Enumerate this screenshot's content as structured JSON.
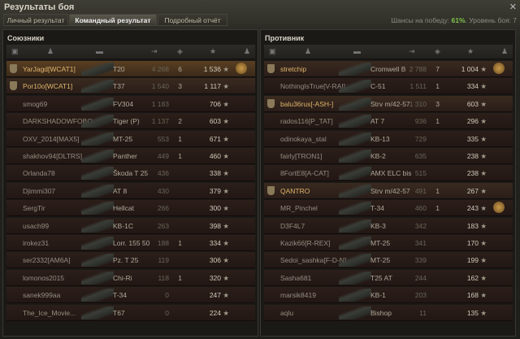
{
  "window": {
    "title": "Результаты боя",
    "close_icon": "close-icon"
  },
  "tabs": [
    {
      "label": "Личный результат"
    },
    {
      "label": "Командный результат",
      "active": true
    },
    {
      "label": "Подробный отчёт"
    }
  ],
  "chance": {
    "label": "Шансы на победу:",
    "value": "61%",
    "level_label": ". Уровень боя: 7"
  },
  "columns": [
    "platoon-icon",
    "player-icon",
    "tank-icon",
    "damage-sort-icon",
    "kills-icon",
    "xp-star-icon",
    "medal-icon"
  ],
  "allies": {
    "title": "Союзники",
    "rows": [
      {
        "name": "YarJagd[WCAT1]",
        "tank": "T20",
        "damage": "4 268",
        "kills": "6",
        "xp": "1 536",
        "platoon": true,
        "me": true,
        "medal": true
      },
      {
        "name": "Por10o[WCAT1]",
        "tank": "T37",
        "damage": "1 540",
        "kills": "3",
        "xp": "1 117",
        "platoon": true
      },
      {
        "name": "smog69",
        "tank": "FV304",
        "damage": "1 183",
        "kills": "",
        "xp": "706"
      },
      {
        "name": "DARKSHADOWFOBO...",
        "tank": "Tiger (P)",
        "damage": "1 137",
        "kills": "2",
        "xp": "603"
      },
      {
        "name": "OXV_2014[MAX5]",
        "tank": "MT-25",
        "damage": "553",
        "kills": "1",
        "xp": "671"
      },
      {
        "name": "shakhov94[DLTRS]",
        "tank": "Panther",
        "damage": "449",
        "kills": "1",
        "xp": "460"
      },
      {
        "name": "Orlanda78",
        "tank": "Škoda T 25",
        "damage": "436",
        "kills": "",
        "xp": "338"
      },
      {
        "name": "Djimmi307",
        "tank": "AT 8",
        "damage": "430",
        "kills": "",
        "xp": "379"
      },
      {
        "name": "SergTir",
        "tank": "Hellcat",
        "damage": "266",
        "kills": "",
        "xp": "300"
      },
      {
        "name": "usach99",
        "tank": "KB-1C",
        "damage": "263",
        "kills": "",
        "xp": "398"
      },
      {
        "name": "irokez31",
        "tank": "Lorr. 155 50",
        "damage": "188",
        "kills": "1",
        "xp": "334"
      },
      {
        "name": "ser2332[AM6A]",
        "tank": "Pz. T 25",
        "damage": "119",
        "kills": "",
        "xp": "306"
      },
      {
        "name": "lomonos2015",
        "tank": "Chi-Ri",
        "damage": "118",
        "kills": "1",
        "xp": "320"
      },
      {
        "name": "sanek999aa",
        "tank": "T-34",
        "damage": "0",
        "kills": "",
        "xp": "247"
      },
      {
        "name": "The_Ice_Movie...",
        "tank": "T67",
        "damage": "0",
        "kills": "",
        "xp": "224"
      }
    ]
  },
  "enemies": {
    "title": "Противник",
    "rows": [
      {
        "name": "stretchip",
        "tank": "Cromwell B",
        "damage": "2 788",
        "kills": "7",
        "xp": "1 004",
        "platoon": true,
        "medal": true
      },
      {
        "name": "NothingIsTrue[V-RAI]",
        "tank": "C-51",
        "damage": "1 511",
        "kills": "1",
        "xp": "334"
      },
      {
        "name": "balu36rus[-ASH-]",
        "tank": "Strv m/42-57",
        "damage": "1 310",
        "kills": "3",
        "xp": "603",
        "platoon": true
      },
      {
        "name": "rados116[P_TAT]",
        "tank": "AT 7",
        "damage": "936",
        "kills": "1",
        "xp": "296"
      },
      {
        "name": "odinokaya_stal",
        "tank": "KB-13",
        "damage": "729",
        "kills": "",
        "xp": "335"
      },
      {
        "name": "fairly[TRON1]",
        "tank": "KB-2",
        "damage": "635",
        "kills": "",
        "xp": "238"
      },
      {
        "name": "8FortE8[A-CAT]",
        "tank": "AMX ELC bis",
        "damage": "515",
        "kills": "",
        "xp": "238"
      },
      {
        "name": "QANTRO",
        "tank": "Strv m/42-57",
        "damage": "491",
        "kills": "1",
        "xp": "267",
        "platoon": true
      },
      {
        "name": "MR_Pinchel",
        "tank": "T-34",
        "damage": "460",
        "kills": "1",
        "xp": "243",
        "medal": true
      },
      {
        "name": "D3F4L7",
        "tank": "KB-3",
        "damage": "342",
        "kills": "",
        "xp": "183"
      },
      {
        "name": "Kazik66[R-REX]",
        "tank": "MT-25",
        "damage": "341",
        "kills": "",
        "xp": "170"
      },
      {
        "name": "Sedoi_sashka[F-D-N]",
        "tank": "MT-25",
        "damage": "339",
        "kills": "",
        "xp": "199"
      },
      {
        "name": "Sasha681",
        "tank": "T25 AT",
        "damage": "244",
        "kills": "",
        "xp": "162"
      },
      {
        "name": "marsik8419",
        "tank": "KB-1",
        "damage": "203",
        "kills": "",
        "xp": "168"
      },
      {
        "name": "aqlu",
        "tank": "Bishop",
        "damage": "11",
        "kills": "",
        "xp": "135"
      }
    ]
  }
}
